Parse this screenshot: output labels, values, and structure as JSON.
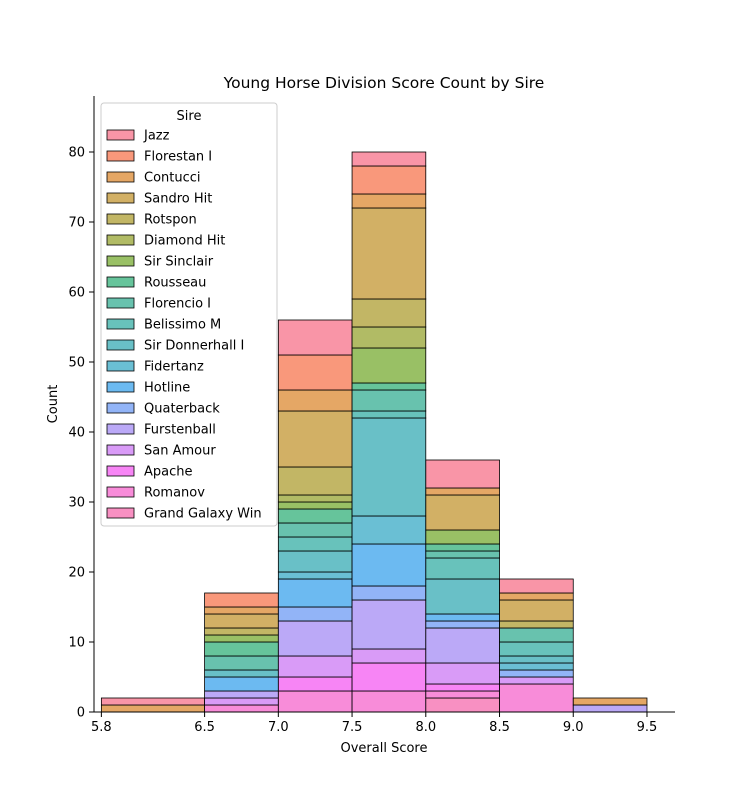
{
  "chart_data": {
    "type": "bar",
    "subtype": "stacked-histogram",
    "title": "Young Horse Division Score Count by Sire",
    "xlabel": "Overall Score",
    "ylabel": "Count",
    "bins": [
      [
        5.8,
        6.5
      ],
      [
        6.5,
        7.0
      ],
      [
        7.0,
        7.5
      ],
      [
        7.5,
        8.0
      ],
      [
        8.0,
        8.5
      ],
      [
        8.5,
        9.0
      ],
      [
        9.0,
        9.5
      ]
    ],
    "x_ticks": [
      5.8,
      6.5,
      7.0,
      7.5,
      8.0,
      8.5,
      9.0,
      9.5
    ],
    "x_tick_labels": [
      "5.8",
      "6.5",
      "7.0",
      "7.5",
      "8.0",
      "8.5",
      "9.0",
      "9.5"
    ],
    "y_ticks": [
      0,
      10,
      20,
      30,
      40,
      50,
      60,
      70,
      80
    ],
    "ylim": [
      0,
      88
    ],
    "xlim": [
      5.75,
      9.69
    ],
    "grid": false,
    "legend": {
      "title": "Sire",
      "placement": "upper-left"
    },
    "series": [
      {
        "name": "Jazz",
        "color": "#f77189",
        "values": [
          1,
          0,
          5,
          2,
          4,
          2,
          0
        ]
      },
      {
        "name": "Florestan I",
        "color": "#f7754f",
        "values": [
          0,
          2,
          5,
          4,
          0,
          0,
          0
        ]
      },
      {
        "name": "Contucci",
        "color": "#dc8932",
        "values": [
          1,
          1,
          3,
          2,
          1,
          1,
          1
        ]
      },
      {
        "name": "Sandro Hit",
        "color": "#c39532",
        "values": [
          0,
          2,
          8,
          13,
          5,
          3,
          0
        ]
      },
      {
        "name": "Rotspon",
        "color": "#ae9d31",
        "values": [
          0,
          1,
          4,
          4,
          0,
          1,
          0
        ]
      },
      {
        "name": "Diamond Hit",
        "color": "#97a431",
        "values": [
          0,
          0,
          1,
          3,
          0,
          0,
          0
        ]
      },
      {
        "name": "Sir Sinclair",
        "color": "#77ab31",
        "values": [
          0,
          1,
          1,
          5,
          2,
          0,
          0
        ]
      },
      {
        "name": "Rousseau",
        "color": "#33b07a",
        "values": [
          0,
          2,
          2,
          1,
          1,
          0,
          0
        ]
      },
      {
        "name": "Florencio I",
        "color": "#35ae93",
        "values": [
          0,
          2,
          2,
          3,
          1,
          2,
          0
        ]
      },
      {
        "name": "Belissimo M",
        "color": "#36ada4",
        "values": [
          0,
          0,
          2,
          1,
          3,
          2,
          0
        ]
      },
      {
        "name": "Sir Donnerhall I",
        "color": "#37abb4",
        "values": [
          0,
          1,
          3,
          14,
          5,
          1,
          0
        ]
      },
      {
        "name": "Fidertanz",
        "color": "#38a9c5",
        "values": [
          0,
          0,
          1,
          4,
          0,
          1,
          0
        ]
      },
      {
        "name": "Hotline",
        "color": "#3ba3ec",
        "values": [
          0,
          2,
          4,
          6,
          1,
          0,
          0
        ]
      },
      {
        "name": "Quaterback",
        "color": "#6e9bf4",
        "values": [
          0,
          0,
          2,
          2,
          1,
          1,
          0
        ]
      },
      {
        "name": "Furstenball",
        "color": "#a48cf4",
        "values": [
          0,
          1,
          5,
          7,
          5,
          0,
          1
        ]
      },
      {
        "name": "San Amour",
        "color": "#cc7af4",
        "values": [
          0,
          1,
          3,
          2,
          3,
          1,
          0
        ]
      },
      {
        "name": "Apache",
        "color": "#f45cf2",
        "values": [
          0,
          0,
          2,
          4,
          1,
          0,
          0
        ]
      },
      {
        "name": "Romanov",
        "color": "#f565cc",
        "values": [
          0,
          1,
          3,
          3,
          1,
          4,
          0
        ]
      },
      {
        "name": "Grand Galaxy Win",
        "color": "#f66bad",
        "values": [
          0,
          0,
          0,
          0,
          2,
          0,
          0
        ]
      }
    ]
  }
}
